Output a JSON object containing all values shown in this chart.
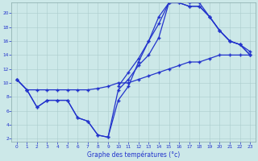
{
  "xlabel": "Graphe des températures (°c)",
  "xlim": [
    -0.5,
    23.5
  ],
  "ylim": [
    1.5,
    21.5
  ],
  "xticks": [
    0,
    1,
    2,
    3,
    4,
    5,
    6,
    7,
    8,
    9,
    10,
    11,
    12,
    13,
    14,
    15,
    16,
    17,
    18,
    19,
    20,
    21,
    22,
    23
  ],
  "yticks": [
    2,
    4,
    6,
    8,
    10,
    12,
    14,
    16,
    18,
    20
  ],
  "bg_color": "#cce8e8",
  "line_color": "#2233cc",
  "line1_x": [
    0,
    1,
    2,
    3,
    4,
    5,
    6,
    7,
    8,
    9,
    10,
    11,
    12,
    13,
    14,
    15,
    16,
    17,
    18,
    19,
    20,
    21,
    22,
    23
  ],
  "line1_y": [
    10.5,
    9.0,
    6.5,
    7.5,
    7.5,
    7.5,
    5.0,
    4.5,
    2.5,
    2.2,
    7.5,
    9.5,
    13.0,
    16.0,
    19.5,
    21.5,
    21.5,
    21.0,
    21.0,
    19.5,
    17.5,
    16.0,
    15.5,
    14.0
  ],
  "line2_x": [
    0,
    1,
    2,
    3,
    4,
    5,
    6,
    7,
    8,
    9,
    10,
    11,
    12,
    13,
    14,
    15,
    16,
    17,
    18,
    19,
    20,
    21,
    22,
    23
  ],
  "line2_y": [
    10.5,
    9.0,
    6.5,
    7.5,
    7.5,
    7.5,
    5.0,
    4.5,
    2.5,
    2.2,
    9.0,
    10.5,
    12.5,
    14.0,
    16.5,
    21.5,
    21.5,
    21.0,
    21.0,
    19.5,
    17.5,
    16.0,
    15.5,
    14.0
  ],
  "line3_x": [
    0,
    1,
    2,
    3,
    4,
    5,
    6,
    7,
    8,
    9,
    10,
    11,
    12,
    13,
    14,
    15,
    16,
    17,
    18,
    19,
    20,
    21,
    22,
    23
  ],
  "line3_y": [
    10.5,
    9.0,
    9.0,
    9.0,
    9.0,
    9.0,
    9.0,
    9.0,
    9.2,
    9.5,
    10.0,
    10.0,
    10.5,
    11.0,
    11.5,
    12.0,
    12.5,
    13.0,
    13.0,
    13.5,
    14.0,
    14.0,
    14.0,
    14.0
  ],
  "line4_x": [
    10,
    11,
    12,
    13,
    14,
    15,
    16,
    17,
    18,
    19,
    20,
    21,
    22,
    23
  ],
  "line4_y": [
    9.5,
    11.5,
    13.5,
    16.0,
    18.5,
    21.5,
    22.0,
    21.5,
    21.5,
    19.5,
    17.5,
    16.0,
    15.5,
    14.5
  ]
}
